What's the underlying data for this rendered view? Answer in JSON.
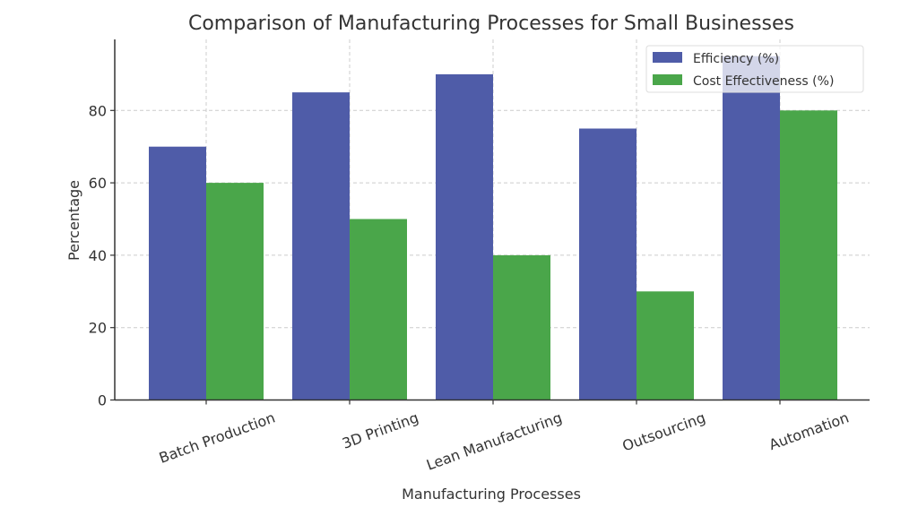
{
  "chart_data": {
    "type": "bar",
    "title": "Comparison of Manufacturing Processes for Small Businesses",
    "xlabel": "Manufacturing Processes",
    "ylabel": "Percentage",
    "categories": [
      "Batch Production",
      "3D Printing",
      "Lean Manufacturing",
      "Outsourcing",
      "Automation"
    ],
    "series": [
      {
        "name": "Efficiency (%)",
        "color": "#4f5ca8",
        "values": [
          70,
          85,
          90,
          75,
          95
        ]
      },
      {
        "name": "Cost Effectiveness (%)",
        "color": "#4aa64a",
        "values": [
          60,
          50,
          40,
          30,
          80
        ]
      }
    ],
    "ylim": [
      0,
      99.75
    ],
    "yticks": [
      0,
      20,
      40,
      60,
      80
    ],
    "grid": true,
    "legend_position": "top-right",
    "xtick_rotation_deg": 20
  }
}
